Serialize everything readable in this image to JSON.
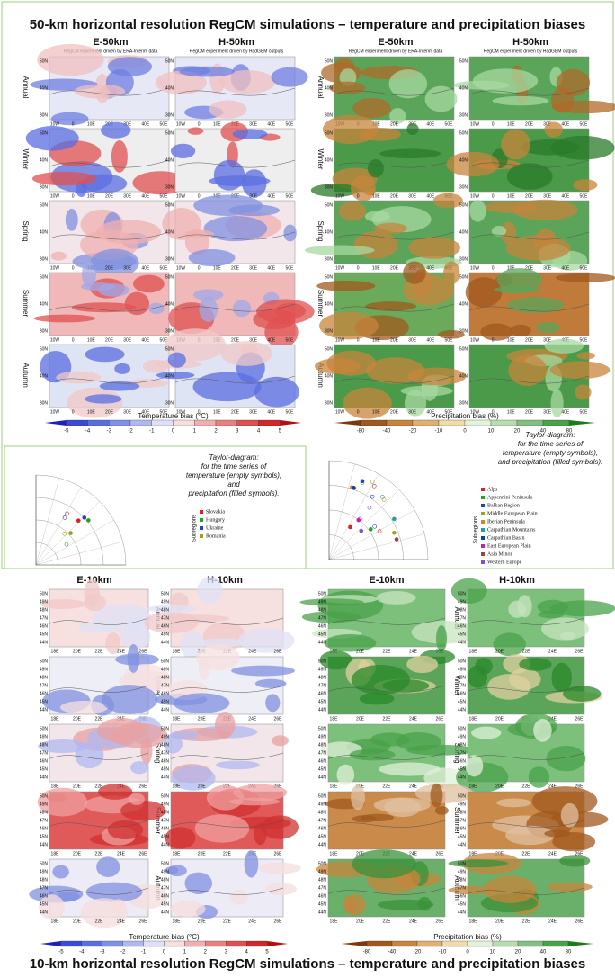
{
  "top_title": "50-km horizontal resolution RegCM simulations – temperature and precipitation biases",
  "bottom_title": "10-km horizontal resolution RegCM simulations – temperature and precipitation biases",
  "columns_50km": [
    {
      "title": "E-50km",
      "subtitle": "RegCM experiment driven by ERA-Interim data"
    },
    {
      "title": "H-50km",
      "subtitle": "RegCM experiment driven by HadGEM outputs"
    }
  ],
  "columns_10km": [
    "E-10km",
    "H-10km"
  ],
  "seasons": [
    "Annual",
    "Winter",
    "Spring",
    "Summer",
    "Autumn"
  ],
  "lon_ticks_50km": [
    "10W",
    "0",
    "10E",
    "20E",
    "30E",
    "40E",
    "50E"
  ],
  "lat_ticks_50km": [
    "50N",
    "40N",
    "30N"
  ],
  "lon_ticks_10km": [
    "18E",
    "20E",
    "22E",
    "24E",
    "26E"
  ],
  "lat_ticks_10km": [
    "50N",
    "49N",
    "48N",
    "47N",
    "46N",
    "45N",
    "44N"
  ],
  "temperature_colorbar": {
    "label": "Temperature bias (°C)",
    "ticks": [
      -5,
      -4,
      -3,
      -2,
      -1,
      0,
      1,
      2,
      3,
      4,
      5
    ]
  },
  "precipitation_colorbar": {
    "label": "Precipitation bias (%)",
    "ticks": [
      -80,
      -40,
      -20,
      -10,
      0,
      10,
      20,
      40,
      80
    ]
  },
  "taylor_10km": {
    "caption": [
      "Taylor-diagram:",
      "for the time series of",
      "temperature (empty symbols),",
      "and",
      "precipitation (filled symbols)."
    ],
    "legend_title": "Subregions",
    "subregions": [
      "Slovakia",
      "Hungary",
      "Ukraine",
      "Romania"
    ]
  },
  "taylor_50km": {
    "caption": [
      "Taylor-diagram:",
      "for the time series of",
      "temperature (empty symbols),",
      "and precipitation (filled symbols)."
    ],
    "legend_title": "Subregions",
    "subregions": [
      "Alps",
      "Appennini Peninsula",
      "Balkan Region",
      "Middle European Plain",
      "Iberian Peninsula",
      "Carpathian Mountains",
      "Carpathian Basin",
      "East European Plain",
      "Asia Minor",
      "Western Europe"
    ]
  }
}
